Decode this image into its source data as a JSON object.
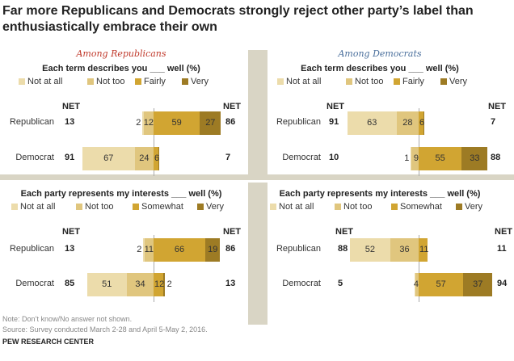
{
  "title": "Far more Republicans and Democrats strongly reject other party’s label than enthusiastically embrace their own",
  "colors": {
    "not_at_all": "#ecdcab",
    "not_too": "#e0c67e",
    "fairly": "#d1a532",
    "very": "#9d7b24",
    "republicans_head": "#c0392b",
    "democrats_head": "#4a6f9c",
    "band": "#d9d5c5"
  },
  "net_label": "NET",
  "footnote": "Note: Don’t know/No answer not shown.",
  "source": "Source: Survey conducted March 2-28 and April 5-May 2, 2016.",
  "brand": "PEW RESEARCH CENTER",
  "chart_data": [
    {
      "type": "bar",
      "stacked": "diverging",
      "group": "Among Republicans",
      "title": "Each term describes you ___ well (%)",
      "legend": [
        "Not at all",
        "Not too",
        "Fairly",
        "Very"
      ],
      "categories": [
        "Republican",
        "Democrat"
      ],
      "series": [
        {
          "name": "Not at all",
          "values": [
            2,
            67
          ]
        },
        {
          "name": "Not too",
          "values": [
            12,
            24
          ]
        },
        {
          "name": "Fairly",
          "values": [
            59,
            6
          ]
        },
        {
          "name": "Very",
          "values": [
            27,
            1
          ]
        }
      ],
      "labels": [
        [
          "2",
          "12",
          "59",
          "27"
        ],
        [
          "67",
          "24",
          "6",
          ""
        ]
      ],
      "net_left": [
        13,
        91
      ],
      "net_right": [
        86,
        7
      ]
    },
    {
      "type": "bar",
      "stacked": "diverging",
      "group": "Among Democrats",
      "title": "Each term describes you ___ well (%)",
      "legend": [
        "Not at all",
        "Not too",
        "Fairly",
        "Very"
      ],
      "categories": [
        "Republican",
        "Democrat"
      ],
      "series": [
        {
          "name": "Not at all",
          "values": [
            63,
            1
          ]
        },
        {
          "name": "Not too",
          "values": [
            28,
            9
          ]
        },
        {
          "name": "Fairly",
          "values": [
            6,
            55
          ]
        },
        {
          "name": "Very",
          "values": [
            1,
            33
          ]
        }
      ],
      "labels": [
        [
          "63",
          "28",
          "6",
          ""
        ],
        [
          "1",
          "9",
          "55",
          "33"
        ]
      ],
      "net_left": [
        91,
        10
      ],
      "net_right": [
        7,
        88
      ]
    },
    {
      "type": "bar",
      "stacked": "diverging",
      "group": "",
      "title": "Each party represents my interests ___ well (%)",
      "legend": [
        "Not at all",
        "Not too",
        "Somewhat",
        "Very"
      ],
      "categories": [
        "Republican",
        "Democrat"
      ],
      "series": [
        {
          "name": "Not at all",
          "values": [
            2,
            51
          ]
        },
        {
          "name": "Not too",
          "values": [
            11,
            34
          ]
        },
        {
          "name": "Somewhat",
          "values": [
            66,
            12
          ]
        },
        {
          "name": "Very",
          "values": [
            19,
            2
          ]
        }
      ],
      "labels": [
        [
          "2",
          "11",
          "66",
          "19"
        ],
        [
          "51",
          "34",
          "12",
          "2"
        ]
      ],
      "net_left": [
        13,
        85
      ],
      "net_right": [
        86,
        13
      ]
    },
    {
      "type": "bar",
      "stacked": "diverging",
      "group": "",
      "title": "Each party represents my interests ___ well (%)",
      "legend": [
        "Not at all",
        "Not too",
        "Somewhat",
        "Very"
      ],
      "categories": [
        "Republican",
        "Democrat"
      ],
      "series": [
        {
          "name": "Not at all",
          "values": [
            52,
            1
          ]
        },
        {
          "name": "Not too",
          "values": [
            36,
            4
          ]
        },
        {
          "name": "Somewhat",
          "values": [
            11,
            57
          ]
        },
        {
          "name": "Very",
          "values": [
            0,
            37
          ]
        }
      ],
      "labels": [
        [
          "52",
          "36",
          "11",
          ""
        ],
        [
          "",
          "4",
          "57",
          "37"
        ]
      ],
      "net_left": [
        88,
        5
      ],
      "net_right": [
        11,
        94
      ]
    }
  ]
}
